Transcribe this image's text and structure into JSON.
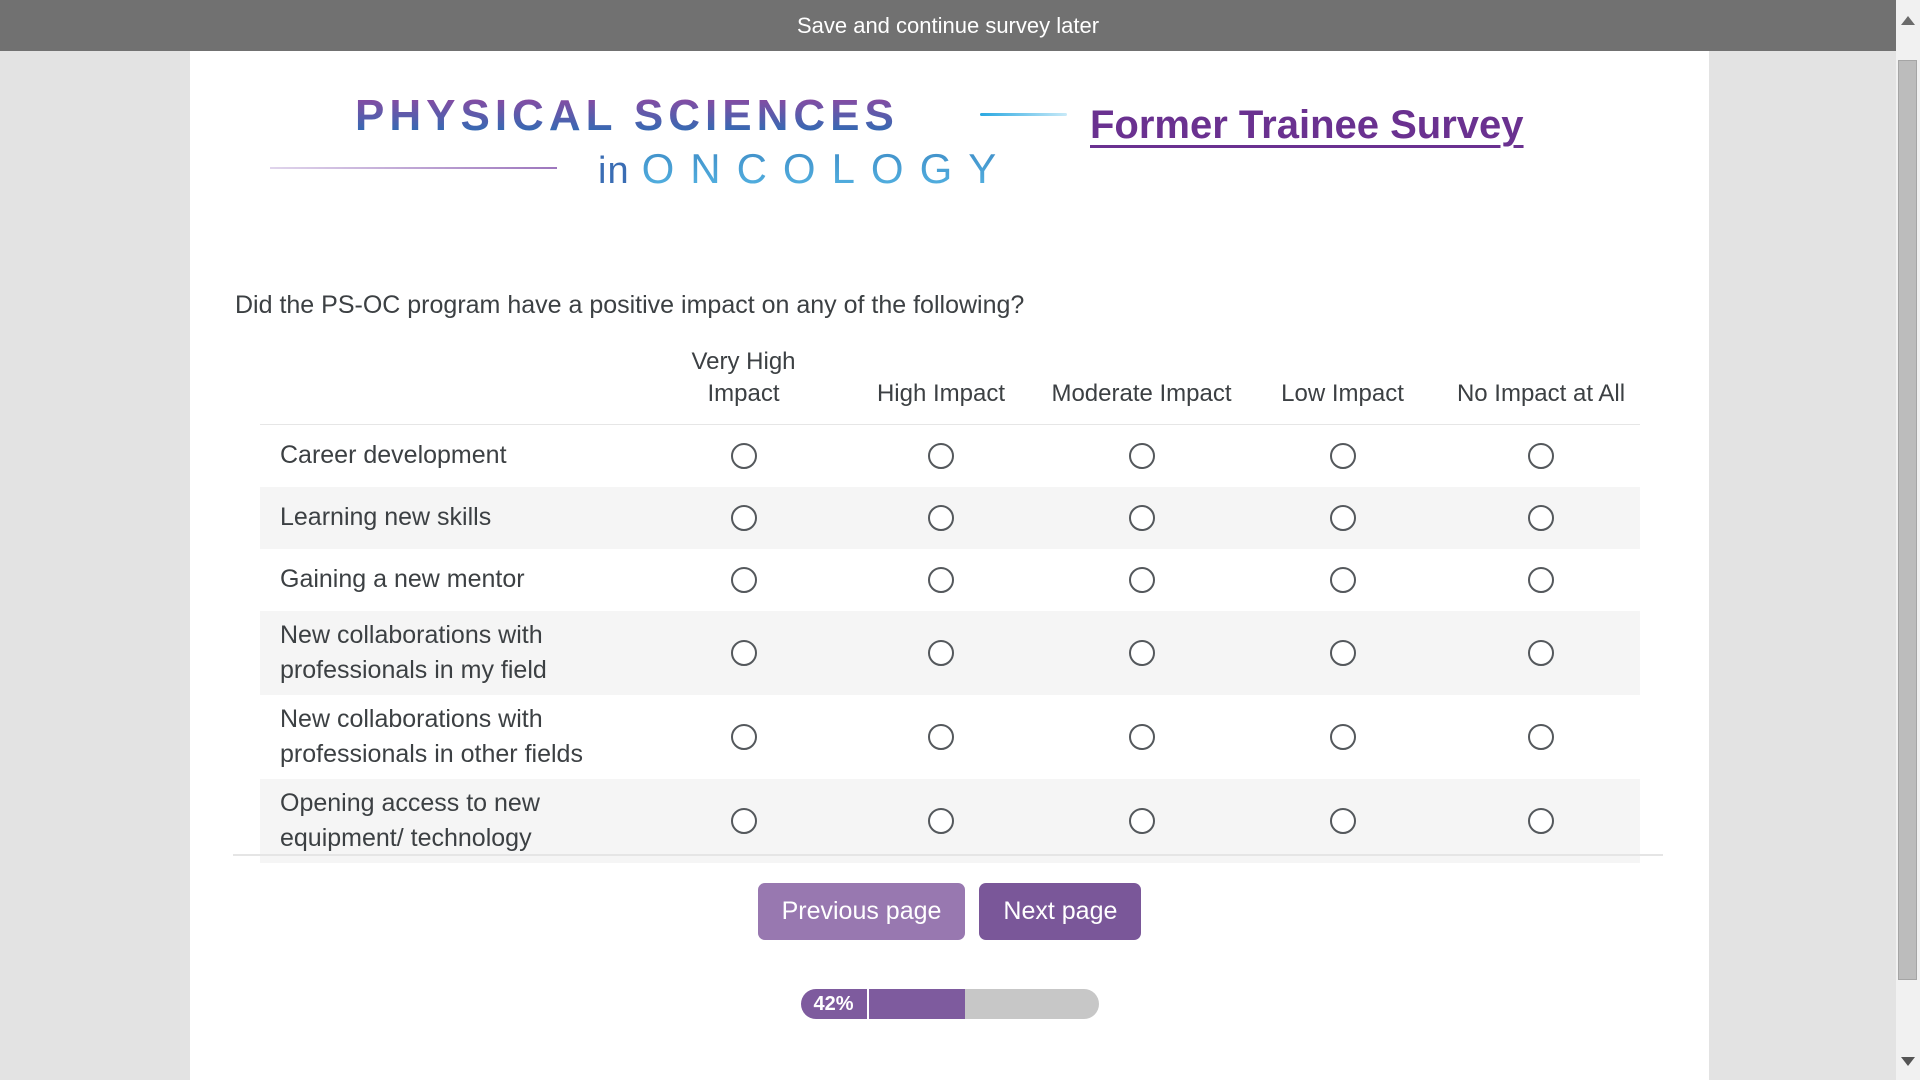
{
  "topbar": {
    "save_label": "Save and continue survey later"
  },
  "logo": {
    "line1": "PHYSICAL SCIENCES",
    "in_word": "in",
    "line2": "ONCOLOGY"
  },
  "page_title": "Former Trainee Survey",
  "question": "Did the PS-OC program have a positive impact on any of the following?",
  "table": {
    "columns": [
      "Very High Impact",
      "High Impact",
      "Moderate Impact",
      "Low Impact",
      "No Impact at All"
    ],
    "rows": [
      {
        "label": "Career development",
        "selected": null
      },
      {
        "label": "Learning new skills",
        "selected": null
      },
      {
        "label": "Gaining a new mentor",
        "selected": null
      },
      {
        "label": "New collaborations with professionals in my field",
        "selected": null
      },
      {
        "label": "New collaborations with professionals in other fields",
        "selected": null
      },
      {
        "label": "Opening access to new equipment/ technology",
        "selected": null
      }
    ]
  },
  "buttons": {
    "previous": "Previous page",
    "next": "Next page"
  },
  "progress": {
    "label": "42%",
    "percent": 42
  },
  "colors": {
    "topbar_gray": "#717171",
    "title_purple": "#6a3190",
    "logo_purple": "#8a4aa2",
    "logo_blue": "#2e6cb4",
    "oncology_blue": "#49a5d8",
    "button_light_purple": "#9878b0",
    "button_dark_purple": "#7a5799",
    "progress_purple": "#7e5b9e",
    "progress_track_gray": "#c7c7c7",
    "alt_row_gray": "#f5f5f5"
  }
}
